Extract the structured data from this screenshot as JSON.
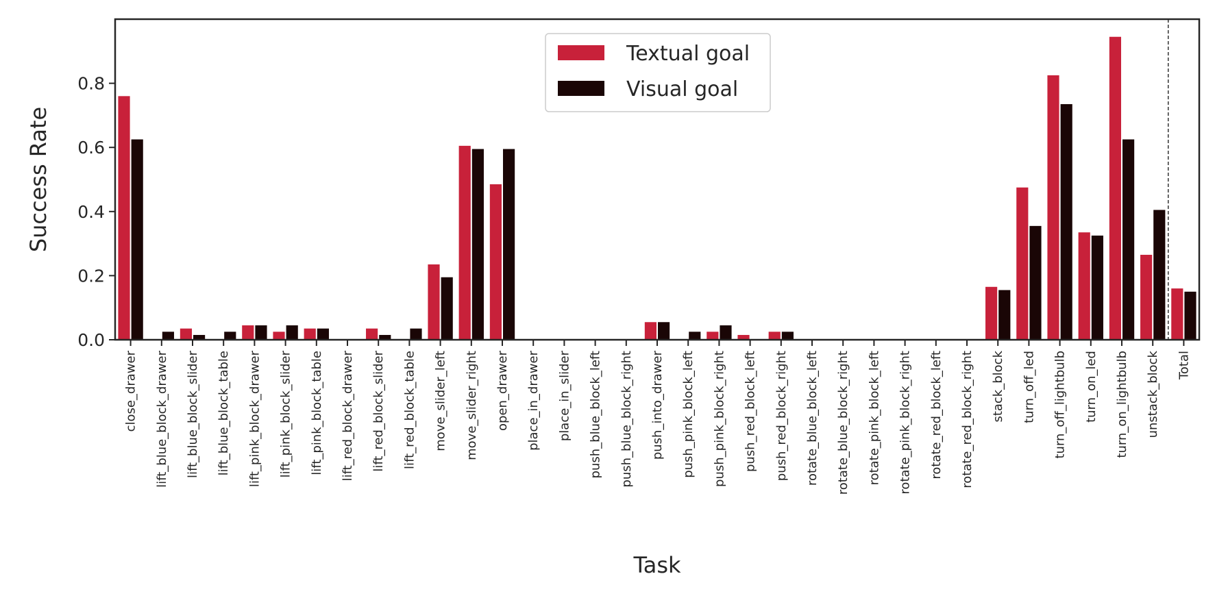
{
  "chart_data": {
    "type": "bar",
    "xlabel": "Task",
    "ylabel": "Success Rate",
    "ylim": [
      0,
      1.0
    ],
    "yticks": [
      "0.0",
      "0.2",
      "0.4",
      "0.6",
      "0.8"
    ],
    "ytick_values": [
      0,
      0.2,
      0.4,
      0.6,
      0.8
    ],
    "grid": false,
    "legend_position": "top-center",
    "categories": [
      "close_drawer",
      "lift_blue_block_drawer",
      "lift_blue_block_slider",
      "lift_blue_block_table",
      "lift_pink_block_drawer",
      "lift_pink_block_slider",
      "lift_pink_block_table",
      "lift_red_block_drawer",
      "lift_red_block_slider",
      "lift_red_block_table",
      "move_slider_left",
      "move_slider_right",
      "open_drawer",
      "place_in_drawer",
      "place_in_slider",
      "push_blue_block_left",
      "push_blue_block_right",
      "push_into_drawer",
      "push_pink_block_left",
      "push_pink_block_right",
      "push_red_block_left",
      "push_red_block_right",
      "rotate_blue_block_left",
      "rotate_blue_block_right",
      "rotate_pink_block_left",
      "rotate_pink_block_right",
      "rotate_red_block_left",
      "rotate_red_block_right",
      "stack_block",
      "turn_off_led",
      "turn_off_lightbulb",
      "turn_on_led",
      "turn_on_lightbulb",
      "unstack_block",
      "Total"
    ],
    "series": [
      {
        "name": "Textual goal",
        "color": "#c8213a",
        "values": [
          0.76,
          0.0,
          0.035,
          0.0,
          0.045,
          0.025,
          0.035,
          0.0,
          0.035,
          0.0,
          0.235,
          0.605,
          0.485,
          0.0,
          0.0,
          0.0,
          0.0,
          0.055,
          0.0,
          0.025,
          0.015,
          0.025,
          0.0,
          0.0,
          0.0,
          0.0,
          0.0,
          0.0,
          0.165,
          0.475,
          0.825,
          0.335,
          0.945,
          0.265,
          0.16
        ]
      },
      {
        "name": "Visual goal",
        "color": "#1a0606",
        "values": [
          0.625,
          0.025,
          0.015,
          0.025,
          0.045,
          0.045,
          0.035,
          0.0,
          0.015,
          0.035,
          0.195,
          0.595,
          0.595,
          0.0,
          0.0,
          0.0,
          0.0,
          0.055,
          0.025,
          0.045,
          0.0,
          0.025,
          0.0,
          0.0,
          0.0,
          0.0,
          0.0,
          0.0,
          0.155,
          0.355,
          0.735,
          0.325,
          0.625,
          0.405,
          0.15
        ]
      }
    ],
    "separator_before": "Total"
  }
}
